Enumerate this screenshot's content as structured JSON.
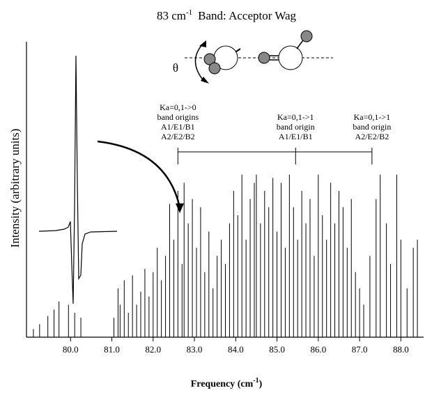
{
  "chart_data": {
    "type": "stick",
    "title": [
      "83 cm",
      "-1",
      "Band:  Acceptor Wag"
    ],
    "x_label": [
      "Frequency (cm",
      "-1",
      ")"
    ],
    "y_label": "Intensity (arbitrary units)",
    "inset_label": "θ",
    "color": "#000000",
    "xlim": [
      79.0,
      88.5
    ],
    "ylim": [
      0,
      1.05
    ],
    "xticks": [
      {
        "value": 80,
        "label": "80.0"
      },
      {
        "value": 81,
        "label": "81.0"
      },
      {
        "value": 82,
        "label": "82.0"
      },
      {
        "value": 83,
        "label": "83.0"
      },
      {
        "value": 84,
        "label": "84.0"
      },
      {
        "value": 85,
        "label": "85.0"
      },
      {
        "value": 86,
        "label": "86.0"
      },
      {
        "value": 87,
        "label": "87.0"
      },
      {
        "value": 88,
        "label": "88.0"
      }
    ],
    "x": [
      79.1,
      79.25,
      79.45,
      79.6,
      79.72,
      79.95,
      80.1,
      80.25,
      81.05,
      81.15,
      81.2,
      81.3,
      81.4,
      81.5,
      81.6,
      81.7,
      81.8,
      81.9,
      82.0,
      82.1,
      82.2,
      82.3,
      82.4,
      82.5,
      82.6,
      82.7,
      82.75,
      82.85,
      82.95,
      83.05,
      83.15,
      83.25,
      83.35,
      83.45,
      83.55,
      83.65,
      83.75,
      83.85,
      83.95,
      84.05,
      84.15,
      84.25,
      84.35,
      84.45,
      84.5,
      84.6,
      84.7,
      84.8,
      84.9,
      85.0,
      85.1,
      85.2,
      85.3,
      85.4,
      85.5,
      85.6,
      85.7,
      85.8,
      85.9,
      86.0,
      86.1,
      86.2,
      86.3,
      86.4,
      86.5,
      86.6,
      86.7,
      86.8,
      86.9,
      87.0,
      87.1,
      87.25,
      87.4,
      87.5,
      87.65,
      87.75,
      87.9,
      88.0,
      88.15,
      88.3,
      88.4
    ],
    "values": [
      0.05,
      0.08,
      0.13,
      0.17,
      0.22,
      0.2,
      0.15,
      0.12,
      0.12,
      0.3,
      0.2,
      0.35,
      0.15,
      0.38,
      0.2,
      0.28,
      0.42,
      0.25,
      0.4,
      0.55,
      0.35,
      0.5,
      0.82,
      0.6,
      0.9,
      0.45,
      0.95,
      0.7,
      0.85,
      0.55,
      0.8,
      0.4,
      0.65,
      0.3,
      0.5,
      0.6,
      0.45,
      0.7,
      0.9,
      0.75,
      1.0,
      0.6,
      0.85,
      0.95,
      1.0,
      0.7,
      0.9,
      0.8,
      0.98,
      0.65,
      0.95,
      0.55,
      1.0,
      0.8,
      0.6,
      0.9,
      0.7,
      0.85,
      0.5,
      1.0,
      0.75,
      0.6,
      0.95,
      0.7,
      0.9,
      0.8,
      0.55,
      0.85,
      0.4,
      0.3,
      0.2,
      0.5,
      0.85,
      1.0,
      0.7,
      0.45,
      1.0,
      0.6,
      0.3,
      0.55,
      0.6
    ],
    "annotations": [
      {
        "x": 82.6,
        "lines": [
          "Ka=0,1->0",
          "band origins",
          "A1/E1/B1",
          "A2/E2/B2"
        ]
      },
      {
        "x": 85.45,
        "lines": [
          "Ka=0,1->1",
          "band origin",
          "A1/E1/B1"
        ]
      },
      {
        "x": 87.3,
        "lines": [
          "Ka=0,1->1",
          "band origin",
          "A2/E2/B2"
        ]
      }
    ]
  }
}
